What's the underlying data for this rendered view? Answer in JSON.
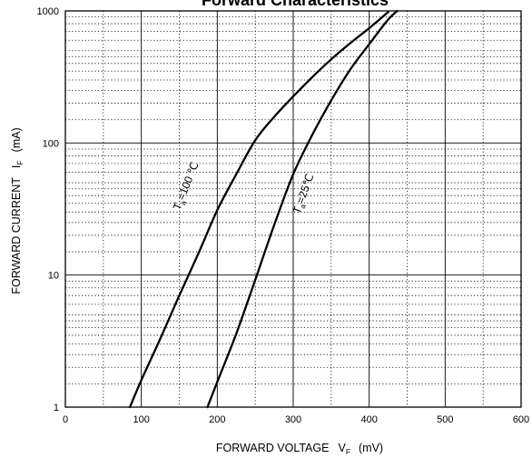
{
  "chart_data": {
    "type": "line",
    "title": "Forward Characteristics",
    "xlabel": "FORWARD VOLTAGE",
    "xlabel_symbol": "V",
    "xlabel_subscript": "F",
    "xlabel_unit": "(mV)",
    "ylabel": "FORWARD CURRENT",
    "ylabel_symbol": "I",
    "ylabel_subscript": "F",
    "ylabel_unit": "(mA)",
    "xlim": [
      0,
      600
    ],
    "ylim": [
      1,
      1000
    ],
    "y_scale": "log",
    "grid": true,
    "x_ticks": [
      0,
      100,
      200,
      300,
      400,
      500,
      600
    ],
    "x_tick_labels": [
      "0",
      "100",
      "200",
      "300",
      "400",
      "500",
      "600"
    ],
    "y_ticks": [
      1,
      10,
      100,
      1000
    ],
    "y_tick_labels": [
      "1",
      "10",
      "100",
      "1000"
    ],
    "series": [
      {
        "name": "Ta=100℃",
        "label_main": "T",
        "label_sub": "a",
        "label_rest": "=100 ℃",
        "x": [
          85,
          100,
          125,
          150,
          175,
          200,
          225,
          250,
          275,
          300,
          325,
          350,
          375,
          400,
          425
        ],
        "y": [
          1,
          1.6,
          3.3,
          7,
          14.5,
          31,
          58,
          105,
          158,
          225,
          315,
          430,
          570,
          740,
          980
        ]
      },
      {
        "name": "Ta=25℃",
        "label_main": "T",
        "label_sub": "a",
        "label_rest": "=25℃",
        "x": [
          187,
          200,
          225,
          250,
          275,
          300,
          325,
          350,
          375,
          400,
          425,
          437
        ],
        "y": [
          1,
          1.55,
          3.6,
          9.2,
          24,
          58,
          115,
          210,
          360,
          560,
          860,
          1000
        ]
      }
    ]
  }
}
